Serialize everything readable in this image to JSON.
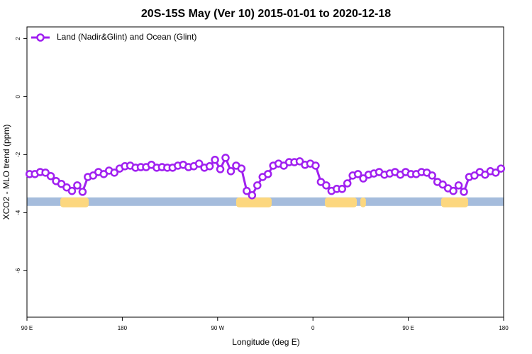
{
  "chart_data": {
    "type": "line",
    "title": "20S-15S May (Ver 10)   2015-01-01 to 2020-12-18",
    "xlabel": "Longitude (deg E)",
    "ylabel": "XCO2 - MLO trend (ppm)",
    "xlim": [
      90,
      540
    ],
    "ylim": [
      -7.6,
      2.4
    ],
    "xticks": [
      {
        "value": 90,
        "label": "90 E"
      },
      180,
      {
        "value": 270,
        "label": "90 W"
      },
      {
        "value": 360,
        "label": "0"
      },
      {
        "value": 450,
        "label": "90 E"
      },
      {
        "value": 540,
        "label": "180"
      }
    ],
    "yticks": [
      2,
      0,
      -2,
      -4,
      -6
    ],
    "grid": false,
    "legend": "top-left",
    "x": [
      92.5,
      97.5,
      102.5,
      107.5,
      112.5,
      117.5,
      122.5,
      127.5,
      132.5,
      137.5,
      142.5,
      147.5,
      152.5,
      157.5,
      162.5,
      167.5,
      172.5,
      177.5,
      182.5,
      187.5,
      192.5,
      197.5,
      202.5,
      207.5,
      212.5,
      217.5,
      222.5,
      227.5,
      232.5,
      237.5,
      242.5,
      247.5,
      252.5,
      257.5,
      262.5,
      267.5,
      272.5,
      277.5,
      282.5,
      287.5,
      292.5,
      297.5,
      302.5,
      307.5,
      312.5,
      317.5,
      322.5,
      327.5,
      332.5,
      337.5,
      342.5,
      347.5,
      352.5,
      357.5,
      362.5,
      367.5,
      372.5,
      377.5,
      382.5,
      387.5,
      392.5,
      397.5,
      402.5,
      407.5,
      412.5,
      417.5,
      422.5,
      427.5,
      432.5,
      437.5,
      442.5,
      447.5,
      452.5,
      457.5,
      462.5,
      467.5,
      472.5,
      477.5,
      482.5,
      487.5,
      492.5,
      497.5,
      502.5,
      507.5,
      512.5,
      517.5,
      522.5,
      527.5,
      532.5,
      537.5
    ],
    "series": [
      {
        "name": "Land (Nadir&Glint) and Ocean (Glint)",
        "color": "#a020f0",
        "values": [
          -2.67,
          -2.67,
          -2.6,
          -2.62,
          -2.74,
          -2.91,
          -3.01,
          -3.13,
          -3.25,
          -3.06,
          -3.28,
          -2.77,
          -2.72,
          -2.6,
          -2.67,
          -2.55,
          -2.62,
          -2.48,
          -2.4,
          -2.38,
          -2.45,
          -2.43,
          -2.43,
          -2.35,
          -2.45,
          -2.43,
          -2.45,
          -2.45,
          -2.38,
          -2.35,
          -2.43,
          -2.4,
          -2.31,
          -2.45,
          -2.4,
          -2.18,
          -2.5,
          -2.11,
          -2.57,
          -2.38,
          -2.48,
          -3.25,
          -3.4,
          -3.06,
          -2.77,
          -2.67,
          -2.38,
          -2.31,
          -2.38,
          -2.26,
          -2.26,
          -2.23,
          -2.35,
          -2.31,
          -2.38,
          -2.94,
          -3.06,
          -3.25,
          -3.18,
          -3.18,
          -2.99,
          -2.72,
          -2.67,
          -2.82,
          -2.69,
          -2.65,
          -2.6,
          -2.69,
          -2.65,
          -2.6,
          -2.69,
          -2.6,
          -2.67,
          -2.67,
          -2.6,
          -2.62,
          -2.72,
          -2.94,
          -3.03,
          -3.16,
          -3.25,
          -3.06,
          -3.28,
          -2.77,
          -2.72,
          -2.6,
          -2.69,
          -2.57,
          -2.62,
          -2.48
        ]
      }
    ],
    "surface_band": {
      "y": -3.62,
      "ocean_color": "#a5bcdc",
      "land_color": "#fcd77f",
      "land": [
        [
          121.5,
          148.3
        ],
        [
          287.5,
          321
        ],
        [
          371.3,
          401.4
        ],
        [
          404.7,
          410
        ],
        [
          481,
          506.5
        ]
      ]
    }
  }
}
